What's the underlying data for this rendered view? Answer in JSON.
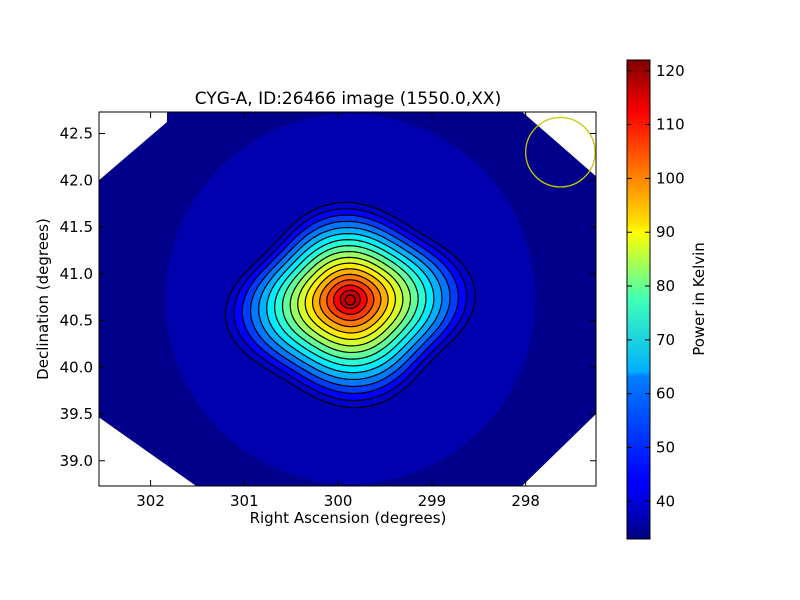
{
  "chart_data": {
    "type": "heatmap",
    "title": "CYG-A, ID:26466 image (1550.0,XX)",
    "xlabel": "Right Ascension (degrees)",
    "ylabel": "Declination (degrees)",
    "xlim": [
      302.55,
      297.25
    ],
    "ylim": [
      38.73,
      42.73
    ],
    "x_ticks": [
      302,
      301,
      300,
      299,
      298
    ],
    "x_tick_labels": [
      "302",
      "301",
      "300",
      "299",
      "298"
    ],
    "y_ticks": [
      39.0,
      39.5,
      40.0,
      40.5,
      41.0,
      41.5,
      42.0,
      42.5
    ],
    "y_tick_labels": [
      "39.0",
      "39.5",
      "40.0",
      "40.5",
      "41.0",
      "41.5",
      "42.0",
      "42.5"
    ],
    "source": {
      "ra": 299.87,
      "dec": 40.73,
      "peak": 121
    },
    "background_level": 34,
    "contour_count": 16,
    "beam_circle": {
      "ra": 297.63,
      "dec": 42.3,
      "radius_deg": 0.37,
      "color": "#c8c800"
    },
    "colorbar": {
      "label": "Power in Kelvin",
      "range": [
        33,
        122
      ],
      "ticks": [
        40,
        50,
        60,
        70,
        80,
        90,
        100,
        110,
        120
      ],
      "tick_labels": [
        "40",
        "50",
        "60",
        "70",
        "80",
        "90",
        "100",
        "110",
        "120"
      ],
      "colormap": "jet"
    },
    "grid": false
  }
}
